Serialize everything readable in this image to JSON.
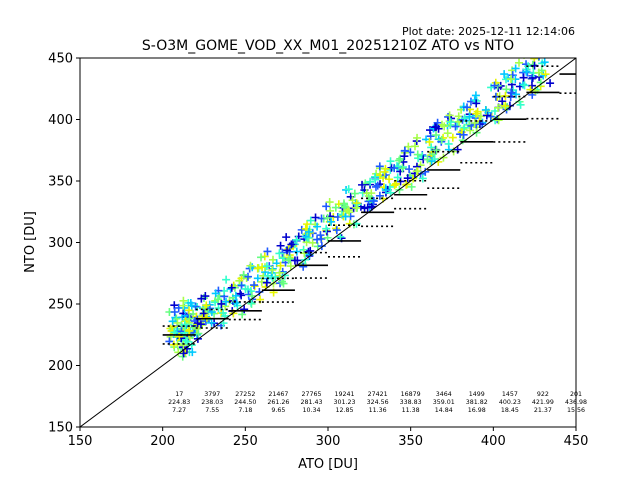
{
  "plot_date": "Plot date: 2025-12-11 12:14:06",
  "chart_data": {
    "type": "scatter",
    "title": "S-O3M_GOME_VOD_XX_M01_20251210Z ATO vs NTO",
    "xlabel": "ATO [DU]",
    "ylabel": "NTO [DU]",
    "xlim": [
      150,
      450
    ],
    "ylim": [
      150,
      450
    ],
    "xticks": [
      "150",
      "200",
      "250",
      "300",
      "350",
      "400",
      "450"
    ],
    "yticks": [
      "150",
      "200",
      "250",
      "300",
      "350",
      "400",
      "450"
    ],
    "grid": false,
    "legend": "none",
    "diagonal": [
      [
        150,
        150
      ],
      [
        450,
        450
      ]
    ],
    "colors": {
      "point_palette": [
        "#0000cd",
        "#1e5aff",
        "#00c8ff",
        "#33ffcc",
        "#66ff80",
        "#a8ff4a",
        "#e6f500"
      ],
      "line": "#000000"
    },
    "bins": [
      {
        "x": 210,
        "count": "17",
        "mean": "224.83",
        "std": "7.27"
      },
      {
        "x": 230,
        "count": "3797",
        "mean": "238.03",
        "std": "7.55"
      },
      {
        "x": 250,
        "count": "27252",
        "mean": "244.50",
        "std": "7.18"
      },
      {
        "x": 270,
        "count": "21467",
        "mean": "261.26",
        "std": "9.65"
      },
      {
        "x": 290,
        "count": "27765",
        "mean": "281.43",
        "std": "10.34"
      },
      {
        "x": 310,
        "count": "19241",
        "mean": "301.23",
        "std": "12.85"
      },
      {
        "x": 330,
        "count": "27421",
        "mean": "324.56",
        "std": "11.36"
      },
      {
        "x": 350,
        "count": "16879",
        "mean": "338.83",
        "std": "11.38"
      },
      {
        "x": 370,
        "count": "3464",
        "mean": "359.01",
        "std": "14.84"
      },
      {
        "x": 390,
        "count": "1499",
        "mean": "381.82",
        "std": "16.98"
      },
      {
        "x": 410,
        "count": "1457",
        "mean": "400.23",
        "std": "18.45"
      },
      {
        "x": 430,
        "count": "922",
        "mean": "421.99",
        "std": "21.37"
      },
      {
        "x": 450,
        "count": "201",
        "mean": "436.98",
        "std": "15.56"
      }
    ],
    "series": [
      {
        "points": [
          [
            208,
            232
          ],
          [
            210,
            226
          ],
          [
            212,
            236
          ],
          [
            214,
            222
          ],
          [
            209,
            229
          ],
          [
            215,
            239
          ],
          [
            218,
            224
          ],
          [
            222,
            240
          ],
          [
            226,
            244
          ],
          [
            232,
            247
          ],
          [
            238,
            251
          ],
          [
            244,
            256
          ],
          [
            250,
            262
          ],
          [
            256,
            268
          ],
          [
            262,
            274
          ],
          [
            268,
            280
          ],
          [
            274,
            287
          ],
          [
            280,
            293
          ],
          [
            286,
            300
          ],
          [
            292,
            306
          ],
          [
            298,
            312
          ],
          [
            304,
            318
          ],
          [
            310,
            324
          ],
          [
            316,
            330
          ],
          [
            322,
            336
          ],
          [
            328,
            342
          ],
          [
            334,
            348
          ],
          [
            340,
            354
          ],
          [
            346,
            360
          ],
          [
            352,
            366
          ],
          [
            358,
            372
          ],
          [
            364,
            378
          ],
          [
            370,
            384
          ],
          [
            376,
            390
          ],
          [
            382,
            396
          ],
          [
            388,
            402
          ],
          [
            394,
            408
          ],
          [
            400,
            414
          ],
          [
            406,
            420
          ],
          [
            412,
            426
          ],
          [
            418,
            432
          ],
          [
            424,
            438
          ],
          [
            430,
            444
          ]
        ]
      }
    ]
  }
}
